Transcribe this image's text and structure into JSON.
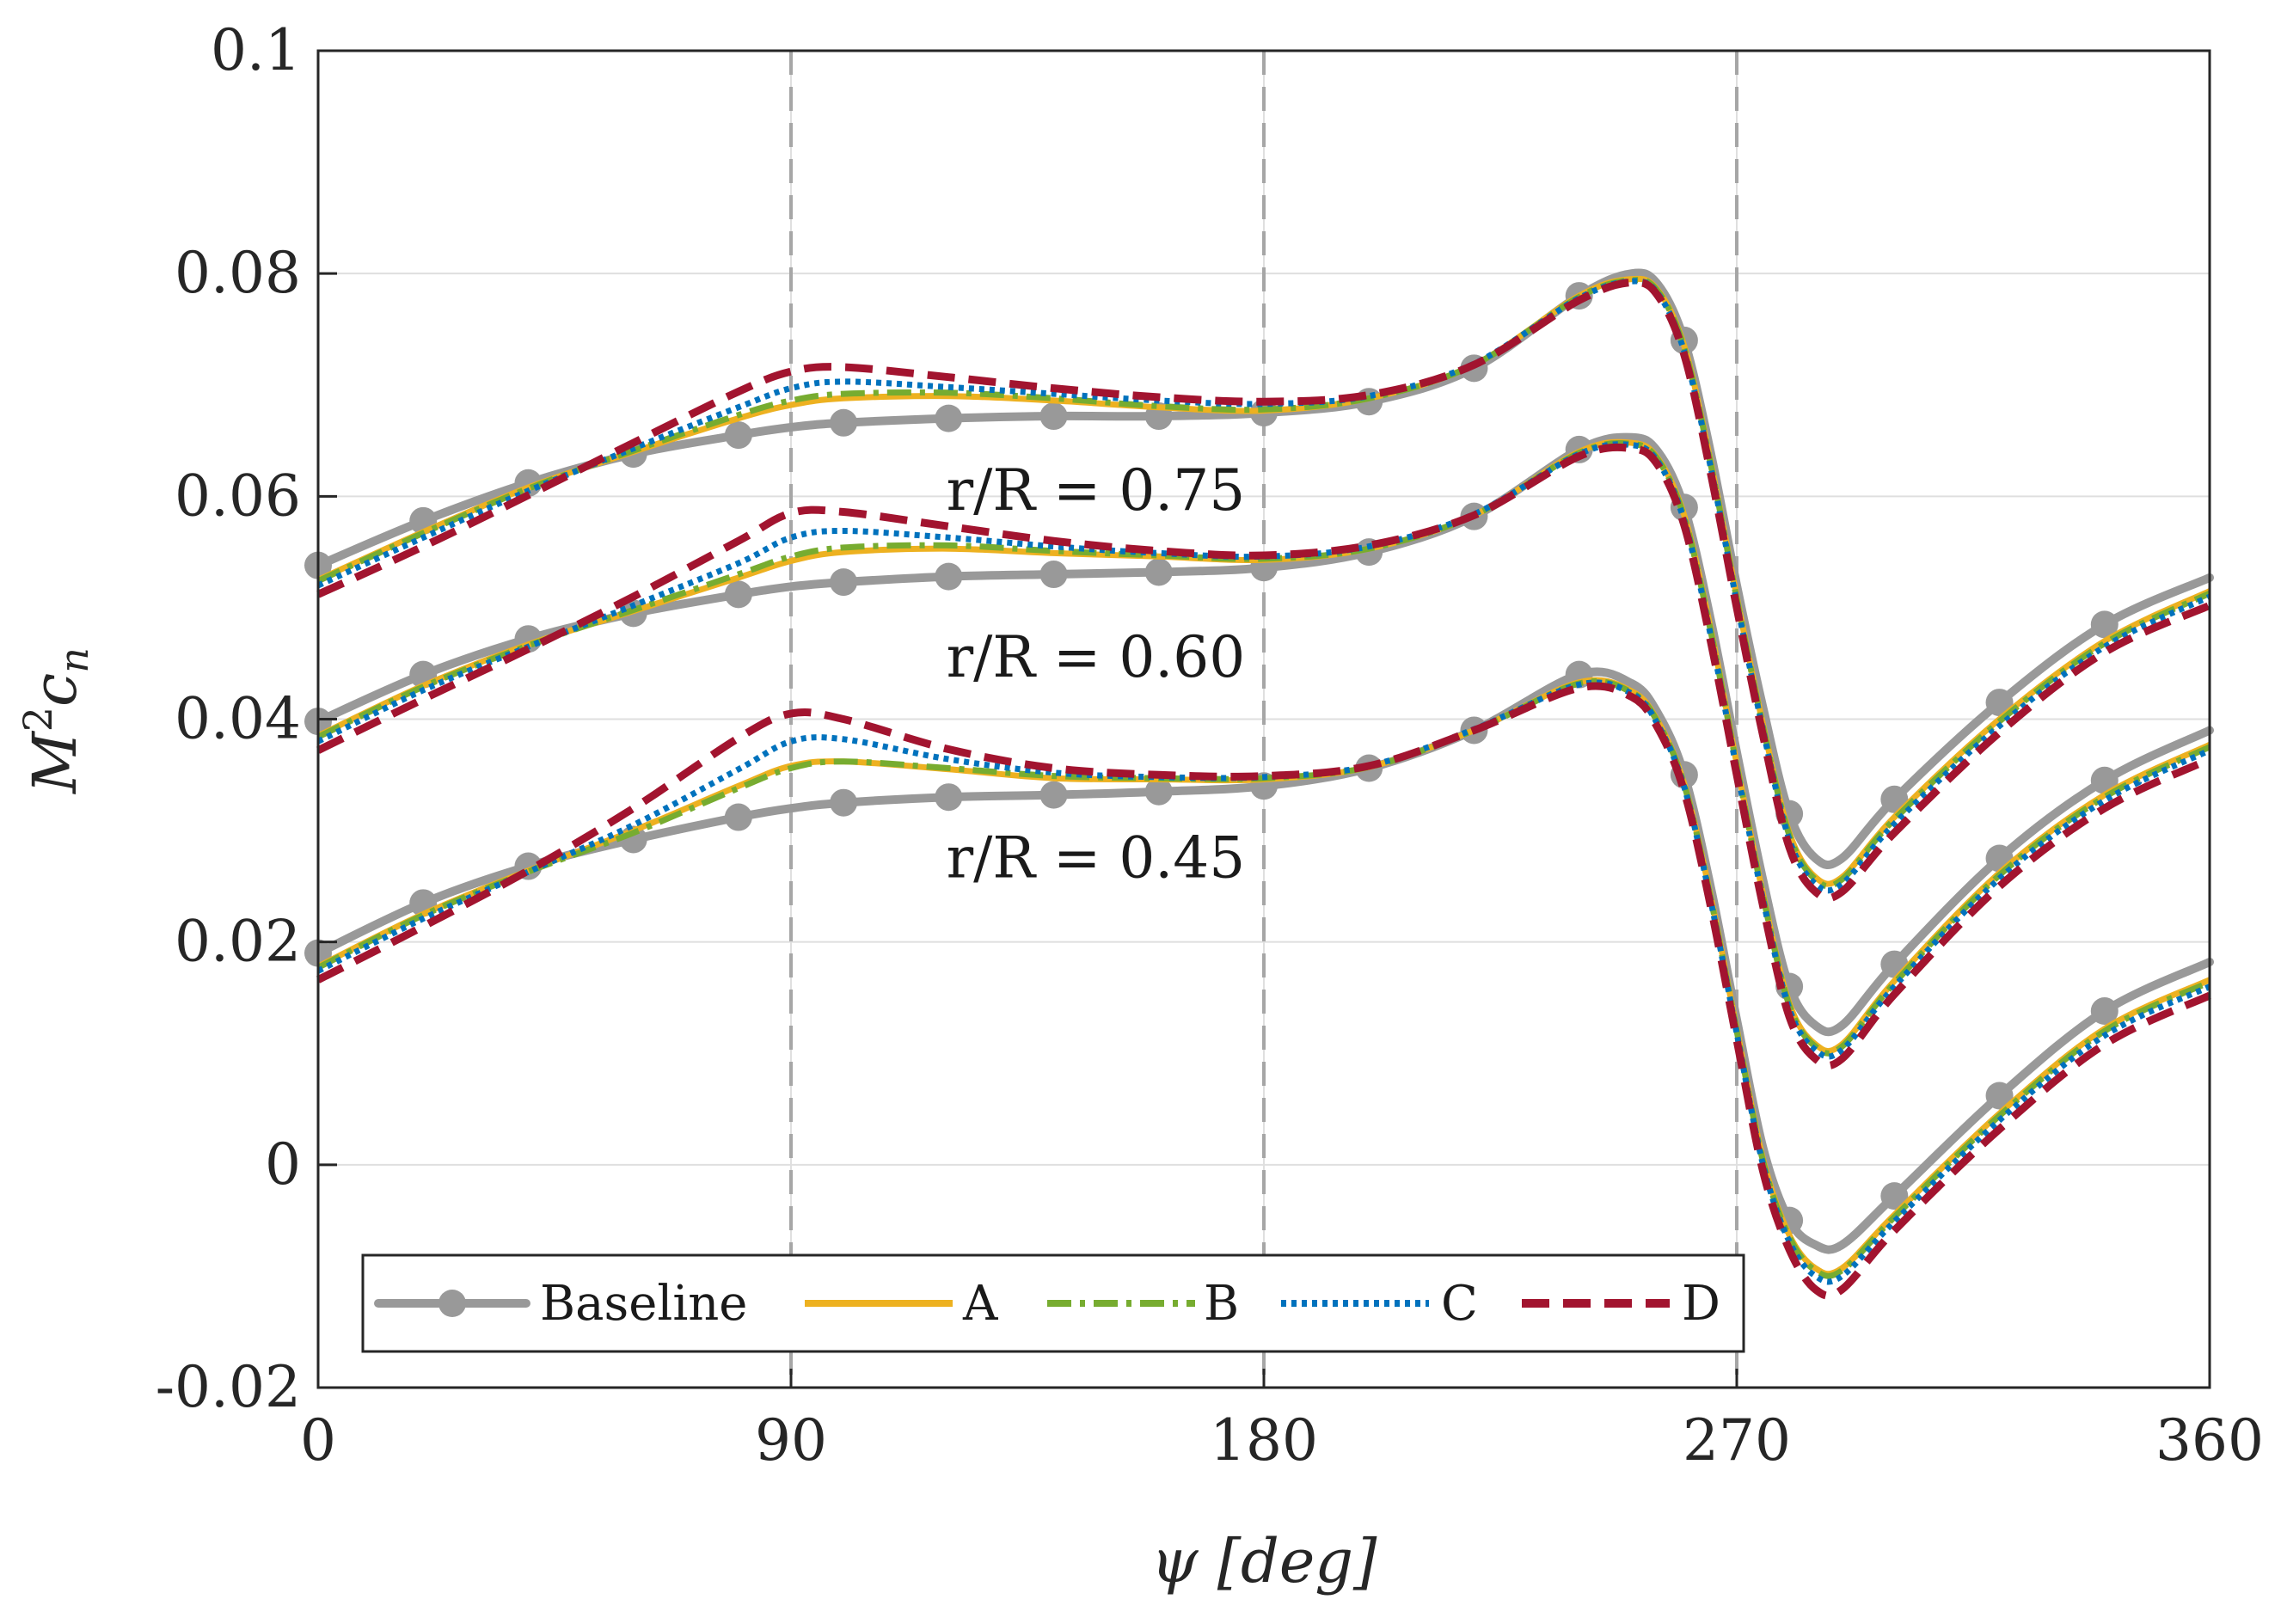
{
  "chart_data": {
    "type": "line",
    "xlabel": "ψ [deg]",
    "ylabel_main": "M",
    "ylabel_sup": "2",
    "ylabel_c": "c",
    "ylabel_sub": "n",
    "xlim": [
      0,
      360
    ],
    "ylim": [
      -0.02,
      0.1
    ],
    "xticks": [
      0,
      90,
      180,
      270,
      360
    ],
    "xtick_labels": [
      "0",
      "90",
      "180",
      "270",
      "360"
    ],
    "yticks": [
      -0.02,
      0,
      0.02,
      0.04,
      0.06,
      0.08,
      0.1
    ],
    "ytick_labels": [
      "-0.02",
      "0",
      "0.02",
      "0.04",
      "0.06",
      "0.08",
      "0.1"
    ],
    "grid": true,
    "reference_lines_x": [
      90,
      180,
      270
    ],
    "legend_position": "bottom-left",
    "annotations": [
      {
        "text": "r/R = 0.75",
        "x": 148,
        "y": 0.0605
      },
      {
        "text": "r/R = 0.60",
        "x": 148,
        "y": 0.0455
      },
      {
        "text": "r/R = 0.45",
        "x": 148,
        "y": 0.0275
      }
    ],
    "series_styles": [
      {
        "name": "Baseline",
        "color": "#999999",
        "dash": "",
        "markers": true
      },
      {
        "name": "A",
        "color": "#EDB120",
        "dash": "",
        "markers": false
      },
      {
        "name": "B",
        "color": "#77AC30",
        "dash": "dashdot",
        "markers": false
      },
      {
        "name": "C",
        "color": "#0072BD",
        "dash": "dotted",
        "markers": false
      },
      {
        "name": "D",
        "color": "#A2142F",
        "dash": "dashed",
        "markers": false
      }
    ],
    "groups": [
      {
        "label": "r/R = 0.75",
        "x": [
          0,
          20,
          40,
          60,
          80,
          90,
          100,
          120,
          140,
          160,
          180,
          200,
          220,
          240,
          250,
          255,
          260,
          265,
          270,
          275,
          280,
          285,
          290,
          300,
          320,
          340,
          360
        ],
        "series": [
          {
            "name": "Baseline",
            "values": [
              0.0538,
              0.0578,
              0.0612,
              0.0638,
              0.0655,
              0.0662,
              0.0666,
              0.067,
              0.0672,
              0.0672,
              0.0675,
              0.0685,
              0.0715,
              0.078,
              0.08,
              0.079,
              0.074,
              0.064,
              0.052,
              0.041,
              0.0315,
              0.0275,
              0.0275,
              0.0328,
              0.0415,
              0.0485,
              0.0527
            ]
          },
          {
            "name": "A",
            "values": [
              0.0525,
              0.0568,
              0.0608,
              0.064,
              0.067,
              0.0682,
              0.0688,
              0.069,
              0.0686,
              0.068,
              0.0677,
              0.0688,
              0.0718,
              0.078,
              0.0795,
              0.0785,
              0.0735,
              0.0632,
              0.051,
              0.0395,
              0.0298,
              0.0258,
              0.0258,
              0.0312,
              0.04,
              0.047,
              0.0515
            ]
          },
          {
            "name": "B",
            "values": [
              0.0524,
              0.0567,
              0.0607,
              0.0641,
              0.0673,
              0.0686,
              0.0692,
              0.0693,
              0.0688,
              0.0681,
              0.0678,
              0.0688,
              0.0718,
              0.0779,
              0.0794,
              0.0784,
              0.0733,
              0.063,
              0.0508,
              0.0393,
              0.0296,
              0.0256,
              0.0256,
              0.031,
              0.0398,
              0.0468,
              0.0513
            ]
          },
          {
            "name": "C",
            "values": [
              0.052,
              0.0563,
              0.0605,
              0.0643,
              0.068,
              0.0697,
              0.0703,
              0.0698,
              0.0692,
              0.0686,
              0.0683,
              0.069,
              0.0719,
              0.0778,
              0.0793,
              0.0782,
              0.073,
              0.0627,
              0.0505,
              0.039,
              0.0292,
              0.0252,
              0.0252,
              0.0306,
              0.0394,
              0.0465,
              0.051
            ]
          },
          {
            "name": "D",
            "values": [
              0.0512,
              0.0555,
              0.0601,
              0.0648,
              0.0694,
              0.0712,
              0.0716,
              0.0707,
              0.0697,
              0.0689,
              0.0685,
              0.0691,
              0.0718,
              0.0776,
              0.0792,
              0.078,
              0.0727,
              0.0622,
              0.05,
              0.0385,
              0.0285,
              0.0245,
              0.0245,
              0.0298,
              0.0388,
              0.046,
              0.0502
            ]
          }
        ]
      },
      {
        "label": "r/R = 0.60",
        "x": [
          0,
          20,
          40,
          60,
          80,
          90,
          100,
          120,
          140,
          160,
          180,
          200,
          220,
          240,
          250,
          255,
          260,
          265,
          270,
          275,
          280,
          285,
          290,
          300,
          320,
          340,
          360
        ],
        "series": [
          {
            "name": "Baseline",
            "values": [
              0.0398,
              0.044,
              0.0472,
              0.0495,
              0.0512,
              0.0519,
              0.0523,
              0.0528,
              0.053,
              0.0532,
              0.0536,
              0.055,
              0.0582,
              0.0642,
              0.0653,
              0.064,
              0.059,
              0.049,
              0.037,
              0.0255,
              0.016,
              0.0125,
              0.0125,
              0.018,
              0.0275,
              0.0345,
              0.039
            ]
          },
          {
            "name": "A",
            "values": [
              0.0385,
              0.043,
              0.0467,
              0.0497,
              0.0527,
              0.0542,
              0.055,
              0.0553,
              0.0549,
              0.0546,
              0.0543,
              0.0553,
              0.0583,
              0.064,
              0.0648,
              0.0634,
              0.0583,
              0.0482,
              0.036,
              0.0243,
              0.0145,
              0.0108,
              0.0108,
              0.0165,
              0.0262,
              0.0332,
              0.0377
            ]
          },
          {
            "name": "B",
            "values": [
              0.0384,
              0.0429,
              0.0466,
              0.0498,
              0.053,
              0.0546,
              0.0554,
              0.0556,
              0.0551,
              0.0547,
              0.0544,
              0.0553,
              0.0583,
              0.0639,
              0.0647,
              0.0633,
              0.0581,
              0.048,
              0.0358,
              0.0241,
              0.0143,
              0.0106,
              0.0106,
              0.0163,
              0.026,
              0.033,
              0.0375
            ]
          },
          {
            "name": "C",
            "values": [
              0.038,
              0.0426,
              0.0465,
              0.0502,
              0.054,
              0.0563,
              0.0569,
              0.0563,
              0.0555,
              0.0549,
              0.0546,
              0.0555,
              0.0584,
              0.0638,
              0.0646,
              0.0631,
              0.0578,
              0.0476,
              0.0355,
              0.0238,
              0.014,
              0.0103,
              0.0103,
              0.016,
              0.0257,
              0.0327,
              0.0372
            ]
          },
          {
            "name": "D",
            "values": [
              0.0372,
              0.0418,
              0.0463,
              0.051,
              0.056,
              0.0585,
              0.0586,
              0.0573,
              0.056,
              0.0551,
              0.0547,
              0.0556,
              0.0583,
              0.0636,
              0.0643,
              0.0628,
              0.0574,
              0.0471,
              0.035,
              0.0232,
              0.0133,
              0.0095,
              0.0095,
              0.0153,
              0.025,
              0.032,
              0.0364
            ]
          }
        ]
      },
      {
        "label": "r/R = 0.45",
        "x": [
          0,
          20,
          40,
          60,
          80,
          90,
          100,
          120,
          140,
          160,
          180,
          200,
          220,
          240,
          250,
          255,
          260,
          265,
          270,
          275,
          280,
          285,
          290,
          300,
          320,
          340,
          360
        ],
        "series": [
          {
            "name": "Baseline",
            "values": [
              0.019,
              0.0235,
              0.0268,
              0.0292,
              0.0312,
              0.032,
              0.0325,
              0.033,
              0.0332,
              0.0335,
              0.034,
              0.0356,
              0.039,
              0.044,
              0.0432,
              0.0405,
              0.035,
              0.025,
              0.013,
              0.0015,
              -0.005,
              -0.0072,
              -0.0072,
              -0.0028,
              0.0062,
              0.0138,
              0.0182
            ]
          },
          {
            "name": "A",
            "values": [
              0.0178,
              0.0225,
              0.0264,
              0.03,
              0.034,
              0.0358,
              0.0362,
              0.0355,
              0.0347,
              0.0346,
              0.0346,
              0.0357,
              0.039,
              0.0433,
              0.0425,
              0.0398,
              0.0342,
              0.0242,
              0.0122,
              0.0005,
              -0.0063,
              -0.0093,
              -0.0093,
              -0.0045,
              0.0046,
              0.0122,
              0.0166
            ]
          },
          {
            "name": "B",
            "values": [
              0.0177,
              0.0224,
              0.0263,
              0.0298,
              0.0338,
              0.0356,
              0.0362,
              0.0356,
              0.0349,
              0.0347,
              0.0347,
              0.0357,
              0.039,
              0.0432,
              0.0424,
              0.0397,
              0.0341,
              0.024,
              0.012,
              0.0003,
              -0.0065,
              -0.0095,
              -0.0095,
              -0.0047,
              0.0044,
              0.012,
              0.0164
            ]
          },
          {
            "name": "C",
            "values": [
              0.0174,
              0.0221,
              0.0263,
              0.0305,
              0.0355,
              0.038,
              0.0382,
              0.0364,
              0.0352,
              0.0348,
              0.0348,
              0.0358,
              0.0391,
              0.0431,
              0.0423,
              0.0395,
              0.0339,
              0.0238,
              0.0118,
              0.0,
              -0.0069,
              -0.01,
              -0.01,
              -0.0051,
              0.004,
              0.0116,
              0.016
            ]
          },
          {
            "name": "D",
            "values": [
              0.0166,
              0.0214,
              0.0264,
              0.032,
              0.0383,
              0.0405,
              0.04,
              0.0373,
              0.0356,
              0.035,
              0.0349,
              0.0358,
              0.039,
              0.0428,
              0.042,
              0.0392,
              0.0335,
              0.0233,
              0.0112,
              -0.0006,
              -0.0076,
              -0.0112,
              -0.0112,
              -0.0059,
              0.0032,
              0.0108,
              0.0152
            ]
          }
        ]
      }
    ],
    "baseline_markers_x": [
      0,
      20,
      40,
      60,
      80,
      100,
      120,
      140,
      160,
      180,
      200,
      220,
      240,
      260,
      280,
      300,
      320,
      340
    ]
  }
}
